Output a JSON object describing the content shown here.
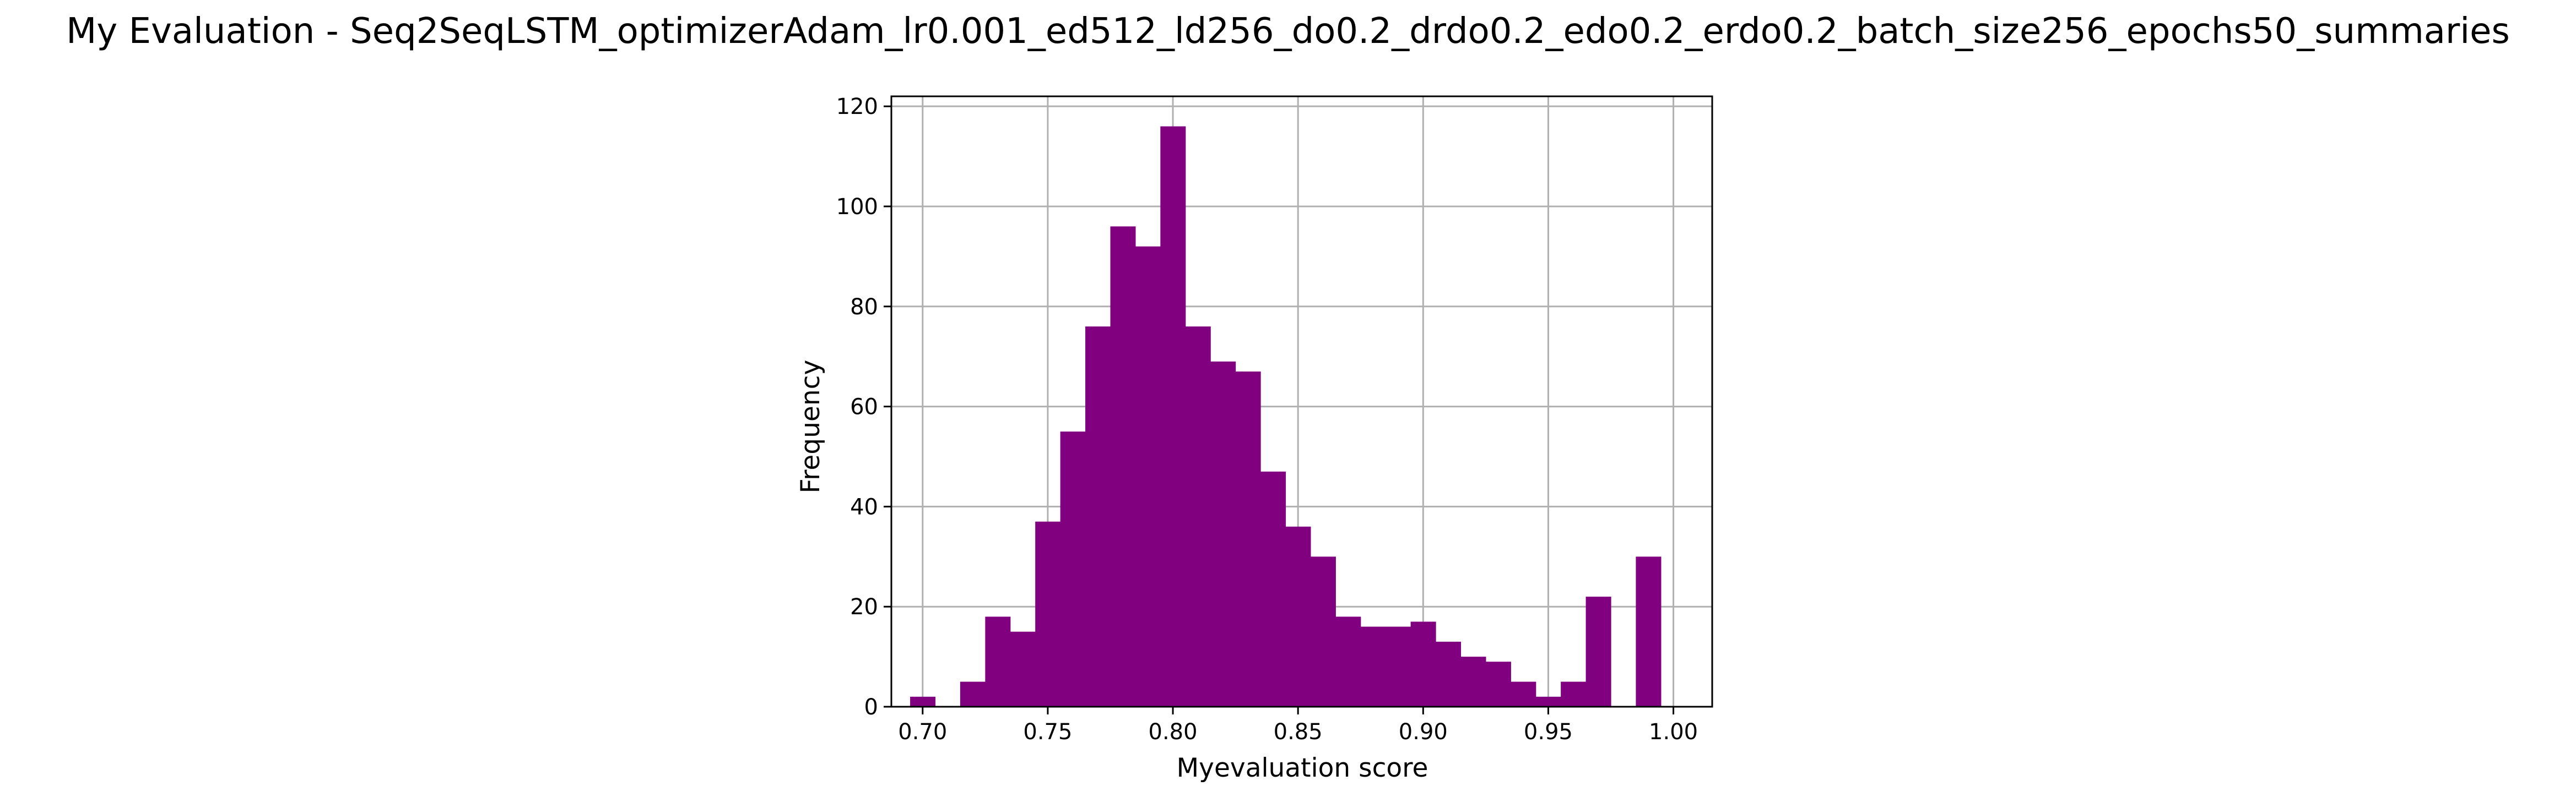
{
  "chart_data": {
    "type": "bar",
    "title": "My Evaluation - Seq2SeqLSTM_optimizerAdam_lr0.001_ed512_ld256_do0.2_drdo0.2_edo0.2_erdo0.2_batch_size256_epochs50_summaries",
    "xlabel": "Myevaluation score",
    "ylabel": "Frequency",
    "xlim": [
      0.6875,
      1.0155
    ],
    "ylim": [
      0,
      122
    ],
    "xticks": [
      0.7,
      0.75,
      0.8,
      0.85,
      0.9,
      0.95,
      1.0
    ],
    "xtick_labels": [
      "0.70",
      "0.75",
      "0.80",
      "0.85",
      "0.90",
      "0.95",
      "1.00"
    ],
    "yticks": [
      0,
      20,
      40,
      60,
      80,
      100,
      120
    ],
    "ytick_labels": [
      "0",
      "20",
      "40",
      "60",
      "80",
      "100",
      "120"
    ],
    "grid": true,
    "bar_color": "#800080",
    "bins": [
      {
        "x0": 0.695,
        "x1": 0.705,
        "count": 2
      },
      {
        "x0": 0.715,
        "x1": 0.725,
        "count": 5
      },
      {
        "x0": 0.725,
        "x1": 0.735,
        "count": 18
      },
      {
        "x0": 0.735,
        "x1": 0.745,
        "count": 15
      },
      {
        "x0": 0.745,
        "x1": 0.755,
        "count": 37
      },
      {
        "x0": 0.755,
        "x1": 0.765,
        "count": 55
      },
      {
        "x0": 0.765,
        "x1": 0.775,
        "count": 76
      },
      {
        "x0": 0.775,
        "x1": 0.785,
        "count": 96
      },
      {
        "x0": 0.785,
        "x1": 0.795,
        "count": 92
      },
      {
        "x0": 0.795,
        "x1": 0.805,
        "count": 116
      },
      {
        "x0": 0.805,
        "x1": 0.815,
        "count": 76
      },
      {
        "x0": 0.815,
        "x1": 0.825,
        "count": 69
      },
      {
        "x0": 0.825,
        "x1": 0.835,
        "count": 67
      },
      {
        "x0": 0.835,
        "x1": 0.845,
        "count": 47
      },
      {
        "x0": 0.845,
        "x1": 0.855,
        "count": 36
      },
      {
        "x0": 0.855,
        "x1": 0.865,
        "count": 30
      },
      {
        "x0": 0.865,
        "x1": 0.875,
        "count": 18
      },
      {
        "x0": 0.875,
        "x1": 0.885,
        "count": 16
      },
      {
        "x0": 0.885,
        "x1": 0.895,
        "count": 16
      },
      {
        "x0": 0.895,
        "x1": 0.905,
        "count": 17
      },
      {
        "x0": 0.905,
        "x1": 0.915,
        "count": 13
      },
      {
        "x0": 0.915,
        "x1": 0.925,
        "count": 10
      },
      {
        "x0": 0.925,
        "x1": 0.935,
        "count": 9
      },
      {
        "x0": 0.935,
        "x1": 0.945,
        "count": 5
      },
      {
        "x0": 0.945,
        "x1": 0.955,
        "count": 2
      },
      {
        "x0": 0.955,
        "x1": 0.965,
        "count": 5
      },
      {
        "x0": 0.965,
        "x1": 0.975,
        "count": 22
      },
      {
        "x0": 0.985,
        "x1": 0.995,
        "count": 30
      }
    ]
  }
}
